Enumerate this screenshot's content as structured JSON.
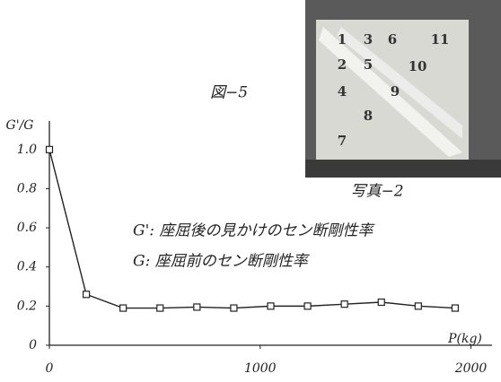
{
  "chart_data": {
    "type": "line",
    "figure_label": "図−5",
    "y_label": "G'/G",
    "x_label": "P(kg)",
    "annotations": [
      "G': 座屈後の見かけのセン断剛性率",
      "G: 座屈前のセン断剛性率"
    ],
    "photo_caption": "写真−2",
    "photo_labels": [
      "1",
      "3",
      "6",
      "11",
      "2",
      "5",
      "10",
      "4",
      "9",
      "8",
      "7"
    ],
    "x": [
      0,
      175,
      350,
      525,
      700,
      875,
      1050,
      1225,
      1400,
      1575,
      1750,
      1925
    ],
    "series": [
      {
        "color": "#222222",
        "values": [
          1.0,
          0.26,
          0.19,
          0.19,
          0.195,
          0.19,
          0.2,
          0.2,
          0.21,
          0.22,
          0.2,
          0.19
        ]
      }
    ],
    "xlim": [
      0,
      2100
    ],
    "ylim": [
      0,
      1.1
    ],
    "xticks": [
      0,
      1000,
      2000
    ],
    "yticks": [
      0,
      0.2,
      0.4,
      0.6,
      0.8,
      {
        "value": 1,
        "label": "1.0"
      }
    ]
  }
}
